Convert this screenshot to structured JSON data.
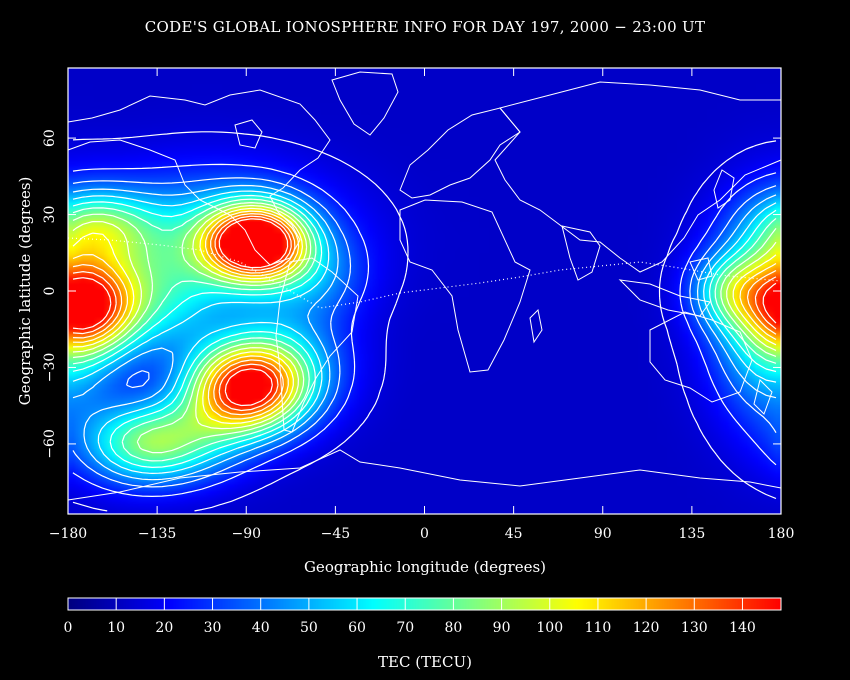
{
  "title": "CODE'S GLOBAL IONOSPHERE INFO FOR DAY 197, 2000 − 23:00 UT",
  "chart_data": {
    "type": "heatmap",
    "title": "CODE'S GLOBAL IONOSPHERE INFO FOR DAY 197, 2000 − 23:00 UT",
    "xlabel": "Geographic longitude (degrees)",
    "ylabel": "Geographic latitude (degrees)",
    "xlim": [
      -180,
      180
    ],
    "ylim": [
      -87.5,
      87.5
    ],
    "x_ticks": [
      -180,
      -135,
      -90,
      -45,
      0,
      45,
      90,
      135,
      180
    ],
    "y_ticks": [
      -60,
      -30,
      0,
      30,
      60
    ],
    "colorbar": {
      "label": "TEC (TECU)",
      "range": [
        0,
        148
      ],
      "ticks": [
        0,
        10,
        20,
        30,
        40,
        50,
        60,
        70,
        80,
        90,
        100,
        110,
        120,
        130,
        140
      ],
      "colors": [
        "#00007f",
        "#0000ff",
        "#0080ff",
        "#00ffff",
        "#80ff80",
        "#ffff00",
        "#ff8000",
        "#ff0000"
      ]
    },
    "background_tec": 12,
    "features": [
      {
        "lon": -85,
        "lat": 19,
        "peak": 148,
        "sx": 17,
        "sy": 10
      },
      {
        "lon": -110,
        "lat": 20,
        "peak": 48,
        "sx": 42,
        "sy": 18
      },
      {
        "lon": -165,
        "lat": 25,
        "peak": 48,
        "sx": 20,
        "sy": 10
      },
      {
        "lon": -170,
        "lat": -6,
        "peak": 88,
        "sx": 16,
        "sy": 12
      },
      {
        "lon": -140,
        "lat": -5,
        "peak": 40,
        "sx": 25,
        "sy": 15
      },
      {
        "lon": -90,
        "lat": -38,
        "peak": 128,
        "sx": 20,
        "sy": 12
      },
      {
        "lon": -70,
        "lat": -28,
        "peak": 35,
        "sx": 22,
        "sy": 15
      },
      {
        "lon": -140,
        "lat": -60,
        "peak": 68,
        "sx": 22,
        "sy": 11
      },
      {
        "lon": -110,
        "lat": -55,
        "peak": 25,
        "sx": 20,
        "sy": 12
      },
      {
        "lon": 175,
        "lat": -10,
        "peak": 62,
        "sx": 20,
        "sy": 26
      },
      {
        "lon": 155,
        "lat": 0,
        "peak": 45,
        "sx": 14,
        "sy": 10
      },
      {
        "lon": -55,
        "lat": 5,
        "peak": 20,
        "sx": 18,
        "sy": 12
      }
    ]
  }
}
